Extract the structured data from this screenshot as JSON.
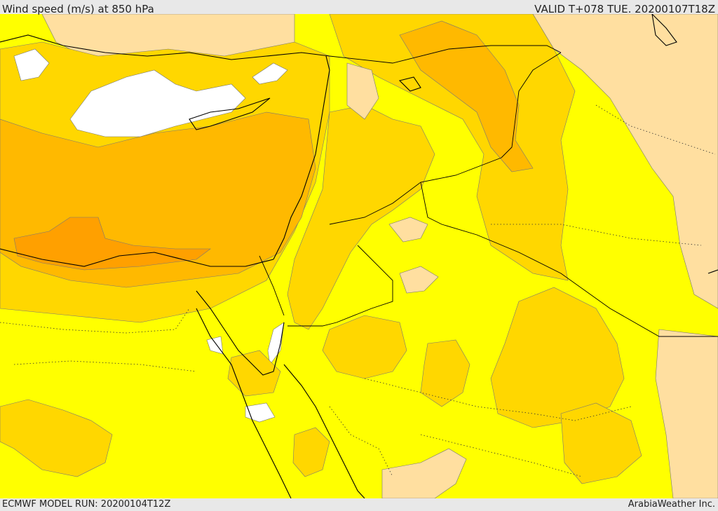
{
  "header": {
    "title": "Wind speed (m/s) at 850 hPa",
    "valid": "VALID T+078 TUE. 20200107T18Z"
  },
  "footer": {
    "model_run": "ECMWF MODEL RUN: 20200104T12Z",
    "brand": "ArabiaWeather Inc."
  },
  "colors": {
    "background_yellow": "#ffff00",
    "band_gold": "#ffd700",
    "band_amber": "#ffb900",
    "band_orange": "#ffa000",
    "band_light": "#ffdfa0",
    "band_white": "#ffffff",
    "coastline": "#000000"
  }
}
